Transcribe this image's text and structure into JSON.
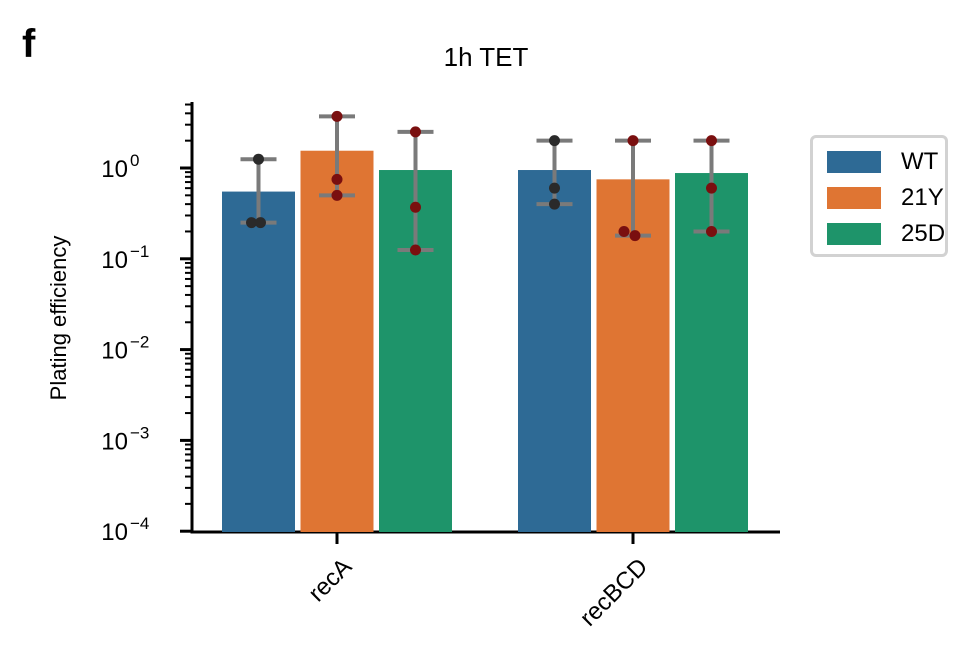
{
  "panel_label": "f",
  "chart_data": {
    "type": "bar",
    "title": "1h TET",
    "xlabel": "",
    "ylabel": "Plating efficiency",
    "yscale": "log",
    "ylim": [
      0.0001,
      5
    ],
    "yticks": [
      {
        "value": 0.0001,
        "base": "10",
        "exp": "−4"
      },
      {
        "value": 0.001,
        "base": "10",
        "exp": "−3"
      },
      {
        "value": 0.01,
        "base": "10",
        "exp": "−2"
      },
      {
        "value": 0.1,
        "base": "10",
        "exp": "−1"
      },
      {
        "value": 1,
        "base": "10",
        "exp": "0"
      }
    ],
    "categories": [
      "recA",
      "recBCD"
    ],
    "series": [
      {
        "name": "WT",
        "color": "#2e6a95",
        "values": [
          0.55,
          0.95
        ],
        "err_low": [
          0.25,
          0.4
        ],
        "err_high": [
          1.25,
          2.0
        ],
        "points": [
          [
            0.25,
            0.25,
            1.25
          ],
          [
            0.4,
            0.6,
            2.0
          ]
        ]
      },
      {
        "name": "21Y",
        "color": "#df7533",
        "values": [
          1.55,
          0.75
        ],
        "err_low": [
          0.5,
          0.18
        ],
        "err_high": [
          3.7,
          2.0
        ],
        "points": [
          [
            0.5,
            0.75,
            3.7
          ],
          [
            0.18,
            0.2,
            2.0
          ]
        ]
      },
      {
        "name": "25D",
        "color": "#1e946a",
        "values": [
          0.95,
          0.88
        ],
        "err_low": [
          0.125,
          0.2
        ],
        "err_high": [
          2.5,
          2.0
        ],
        "points": [
          [
            0.125,
            0.37,
            2.5
          ],
          [
            0.2,
            0.6,
            2.0
          ]
        ]
      }
    ],
    "legend": {
      "position": "right",
      "entries": [
        "WT",
        "21Y",
        "25D"
      ]
    },
    "grid": false
  }
}
